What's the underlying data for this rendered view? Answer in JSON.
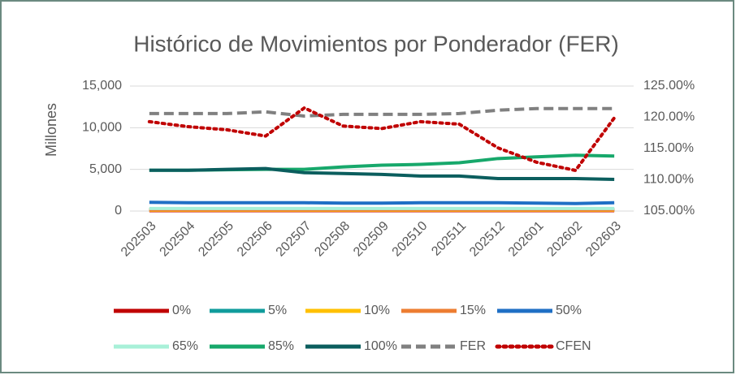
{
  "chart_data": {
    "type": "line",
    "title": "Histórico de Movimientos por Ponderador (FER)",
    "ylabel": "Millones",
    "categories": [
      "202503",
      "202504",
      "202505",
      "202506",
      "202507",
      "202508",
      "202509",
      "202510",
      "202511",
      "202512",
      "202601",
      "202602",
      "202603"
    ],
    "ylim": [
      0,
      15000
    ],
    "yticks": [
      0,
      {
        "value": 5000,
        "label": "5,000"
      },
      {
        "value": 10000,
        "label": "10,000"
      },
      {
        "value": 15000,
        "label": "15,000"
      }
    ],
    "y2lim": [
      105,
      125
    ],
    "y2ticks": [
      {
        "value": 105,
        "label": "105.00%"
      },
      {
        "value": 110,
        "label": "110.00%"
      },
      {
        "value": 115,
        "label": "115.00%"
      },
      {
        "value": 120,
        "label": "120.00%"
      },
      {
        "value": 125,
        "label": "125.00%"
      }
    ],
    "grid": true,
    "legend": "bottom",
    "series": [
      {
        "name": "0%",
        "color": "#c00000",
        "values": [
          50,
          50,
          50,
          50,
          50,
          50,
          50,
          50,
          50,
          50,
          50,
          50,
          50
        ]
      },
      {
        "name": "5%",
        "color": "#109c9c",
        "values": [
          200,
          200,
          200,
          200,
          200,
          200,
          200,
          200,
          200,
          200,
          200,
          200,
          200
        ]
      },
      {
        "name": "10%",
        "color": "#ffc000",
        "values": [
          100,
          100,
          100,
          100,
          100,
          100,
          100,
          100,
          100,
          100,
          100,
          100,
          100
        ]
      },
      {
        "name": "15%",
        "color": "#ed7d31",
        "values": [
          150,
          150,
          150,
          150,
          150,
          150,
          150,
          150,
          150,
          150,
          150,
          150,
          150
        ]
      },
      {
        "name": "50%",
        "color": "#1f6fc5",
        "values": [
          1050,
          1000,
          1000,
          1000,
          1000,
          950,
          950,
          1000,
          1000,
          1000,
          950,
          900,
          1000
        ]
      },
      {
        "name": "65%",
        "color": "#a8f0d8",
        "values": [
          300,
          300,
          300,
          300,
          300,
          300,
          300,
          300,
          300,
          300,
          300,
          300,
          300
        ]
      },
      {
        "name": "85%",
        "color": "#17a86b",
        "values": [
          4900,
          4900,
          4950,
          5000,
          5000,
          5300,
          5500,
          5600,
          5800,
          6300,
          6500,
          6700,
          6600
        ]
      },
      {
        "name": "100%",
        "color": "#0b5e5e",
        "values": [
          4900,
          4900,
          5000,
          5100,
          4600,
          4500,
          4400,
          4200,
          4200,
          3900,
          3900,
          3900,
          3800
        ]
      },
      {
        "name": "FER",
        "color": "#808080",
        "dash": "dashed",
        "values": [
          11700,
          11700,
          11700,
          11900,
          11400,
          11600,
          11600,
          11600,
          11700,
          12100,
          12300,
          12300,
          12300
        ]
      },
      {
        "name": "CFEN",
        "color": "#c00000",
        "dash": "dotted",
        "axis": "y2",
        "values": [
          119.3,
          118.5,
          118,
          117,
          121.5,
          118.6,
          118.2,
          119.3,
          118.9,
          115.1,
          112.8,
          111.5,
          119.9
        ]
      }
    ]
  }
}
